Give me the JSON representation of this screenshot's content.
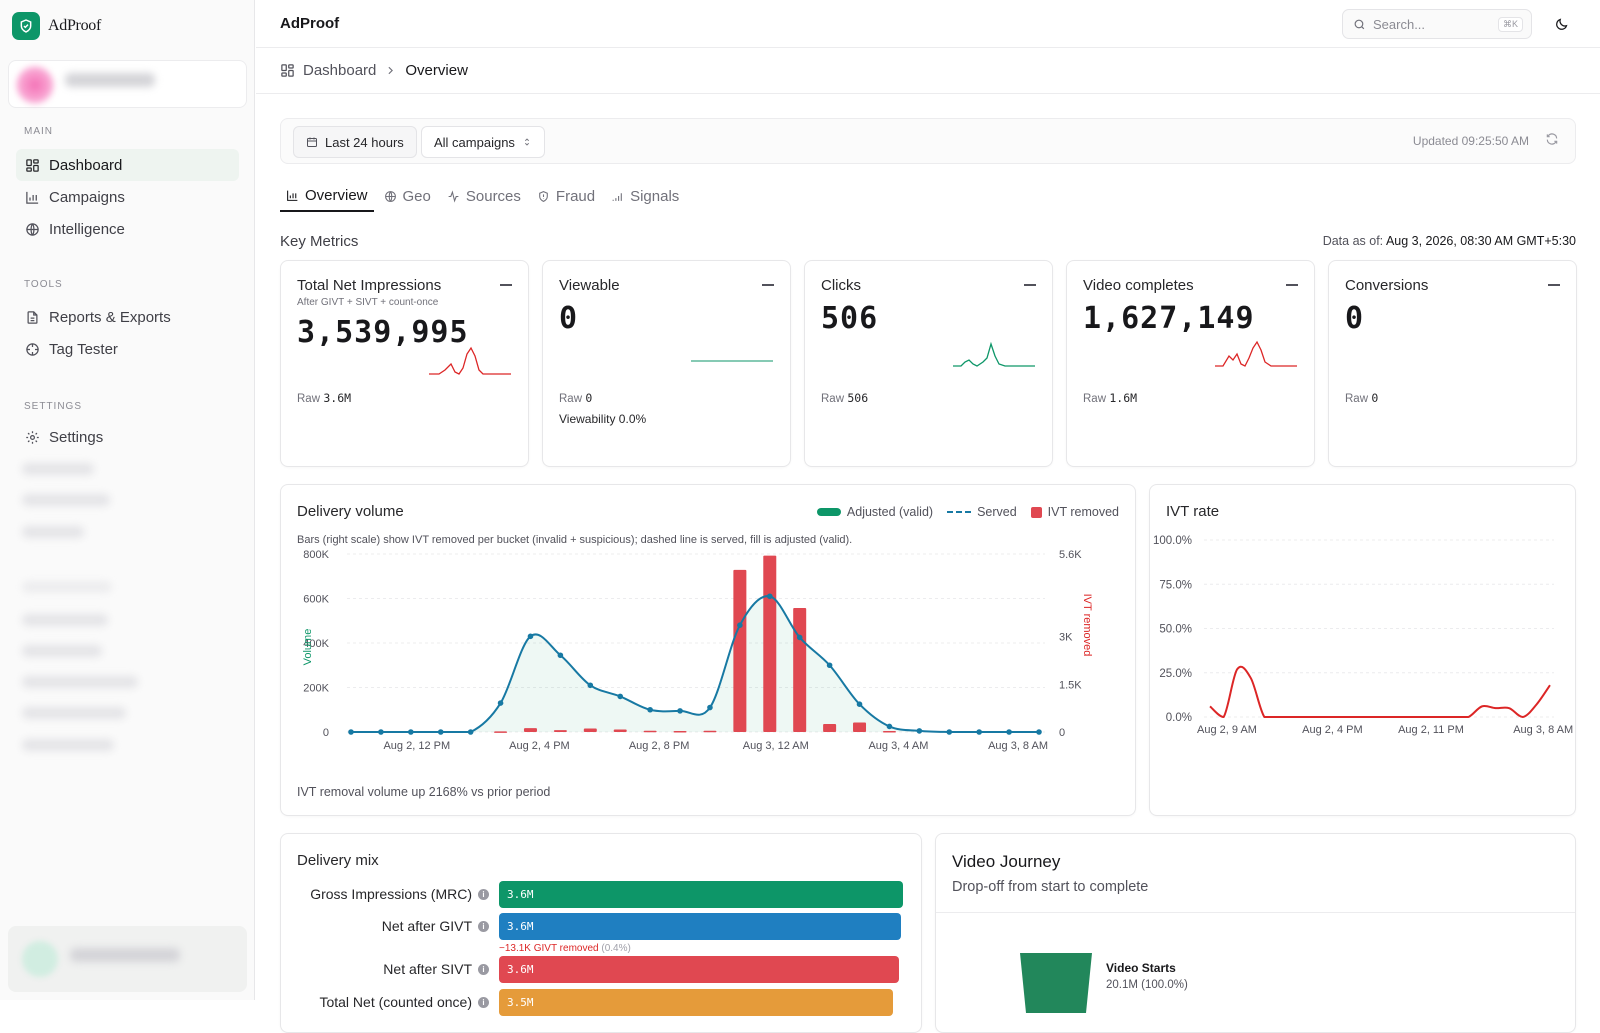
{
  "app": {
    "brand": "AdProof",
    "header_title": "AdProof",
    "search_placeholder": "Search...",
    "search_shortcut": "⌘K"
  },
  "sidebar": {
    "sections": [
      {
        "label": "MAIN",
        "items": [
          {
            "label": "Dashboard",
            "icon": "dashboard-icon",
            "active": true
          },
          {
            "label": "Campaigns",
            "icon": "bar-chart-icon"
          },
          {
            "label": "Intelligence",
            "icon": "globe-brain-icon"
          }
        ]
      },
      {
        "label": "TOOLS",
        "items": [
          {
            "label": "Reports & Exports",
            "icon": "file-icon"
          },
          {
            "label": "Tag Tester",
            "icon": "crosshair-icon"
          }
        ]
      },
      {
        "label": "SETTINGS",
        "items": [
          {
            "label": "Settings",
            "icon": "gear-icon"
          }
        ]
      }
    ]
  },
  "breadcrumb": {
    "root": "Dashboard",
    "current": "Overview"
  },
  "filters": {
    "range": "Last 24 hours",
    "campaign": "All campaigns",
    "updated": "Updated 09:25:50 AM"
  },
  "tabs": [
    {
      "label": "Overview",
      "active": true
    },
    {
      "label": "Geo"
    },
    {
      "label": "Sources"
    },
    {
      "label": "Fraud"
    },
    {
      "label": "Signals"
    }
  ],
  "key_metrics": {
    "title": "Key Metrics",
    "as_of_label": "Data as of:",
    "as_of_value": "Aug 3, 2026, 08:30 AM GMT+5:30",
    "cards": [
      {
        "label": "Total Net Impressions",
        "sub": "After GIVT + SIVT + count-once",
        "value": "3,539,995",
        "raw_label": "Raw",
        "raw": "3.6M",
        "spark_color": "#dc2626"
      },
      {
        "label": "Viewable",
        "value": "0",
        "raw_label": "Raw",
        "raw": "0",
        "extra": "Viewability 0.0%",
        "spark_color": "#0d9668"
      },
      {
        "label": "Clicks",
        "value": "506",
        "raw_label": "Raw",
        "raw": "506",
        "spark_color": "#0d9668"
      },
      {
        "label": "Video completes",
        "value": "1,627,149",
        "raw_label": "Raw",
        "raw": "1.6M",
        "spark_color": "#dc2626"
      },
      {
        "label": "Conversions",
        "value": "0",
        "raw_label": "Raw",
        "raw": "0"
      }
    ]
  },
  "delivery_volume": {
    "title": "Delivery volume",
    "legend": [
      "Adjusted (valid)",
      "Served",
      "IVT removed"
    ],
    "description": "Bars (right scale) show IVT removed per bucket (invalid + suspicious); dashed line is served, fill is adjusted (valid).",
    "footer": "IVT removal volume up 2168% vs prior period",
    "y_left_label": "Volume",
    "y_right_label": "IVT removed"
  },
  "ivt_rate": {
    "title": "IVT rate"
  },
  "chart_data": [
    {
      "type": "line",
      "title": "Delivery volume",
      "x_ticks": [
        "Aug 2, 12 PM",
        "Aug 2, 4 PM",
        "Aug 2, 8 PM",
        "Aug 3, 12 AM",
        "Aug 3, 4 AM",
        "Aug 3, 8 AM"
      ],
      "y_left_ticks": [
        "800K",
        "600K",
        "400K",
        "200K",
        "0"
      ],
      "y_right_ticks": [
        "5.6K",
        "3K",
        "1.5K",
        "0"
      ],
      "ylim": [
        0,
        800000
      ],
      "y2lim": [
        0,
        5600
      ],
      "series": [
        {
          "name": "Adjusted (valid)",
          "values": [
            0,
            0,
            0,
            0,
            0,
            130000,
            430000,
            345000,
            210000,
            160000,
            100000,
            95000,
            110000,
            480000,
            610000,
            425000,
            300000,
            125000,
            25000,
            5000,
            0,
            0,
            0,
            0
          ]
        },
        {
          "name": "IVT removed",
          "values": [
            0,
            0,
            0,
            0,
            0,
            20,
            120,
            60,
            110,
            80,
            40,
            30,
            40,
            5100,
            5550,
            3900,
            250,
            300,
            30,
            0,
            0,
            0,
            0,
            0
          ]
        }
      ]
    },
    {
      "type": "line",
      "title": "IVT rate",
      "x_ticks": [
        "Aug 2, 9 AM",
        "Aug 2, 4 PM",
        "Aug 2, 11 PM",
        "Aug 3, 8 AM"
      ],
      "y_ticks": [
        "100.0%",
        "75.0%",
        "50.0%",
        "25.0%",
        "0.0%"
      ],
      "ylim": [
        0,
        100
      ],
      "series": [
        {
          "name": "IVT rate",
          "values": [
            6,
            0,
            27,
            22,
            0,
            0,
            0,
            0,
            0,
            0,
            0,
            0,
            0,
            0,
            0,
            0,
            0,
            0,
            0,
            0,
            6,
            5,
            5,
            0,
            7,
            18
          ]
        }
      ]
    }
  ],
  "delivery_mix": {
    "title": "Delivery mix",
    "rows": [
      {
        "label": "Gross Impressions (MRC)",
        "value": "3.6M",
        "color": "#0d9668",
        "fraction": 1.0
      },
      {
        "label": "Net after GIVT",
        "value": "3.6M",
        "color": "#1f7fc1",
        "fraction": 0.996,
        "note": "−13.1K GIVT removed",
        "note_pct": "(0.4%)"
      },
      {
        "label": "Net after SIVT",
        "value": "3.6M",
        "color": "#e04851",
        "fraction": 0.99
      },
      {
        "label": "Total Net (counted once)",
        "value": "3.5M",
        "color": "#e59b3a",
        "fraction": 0.975
      }
    ]
  },
  "video_journey": {
    "title": "Video Journey",
    "subtitle": "Drop-off from start to complete",
    "stage_label": "Video Starts",
    "stage_value": "20.1M (100.0%)"
  }
}
